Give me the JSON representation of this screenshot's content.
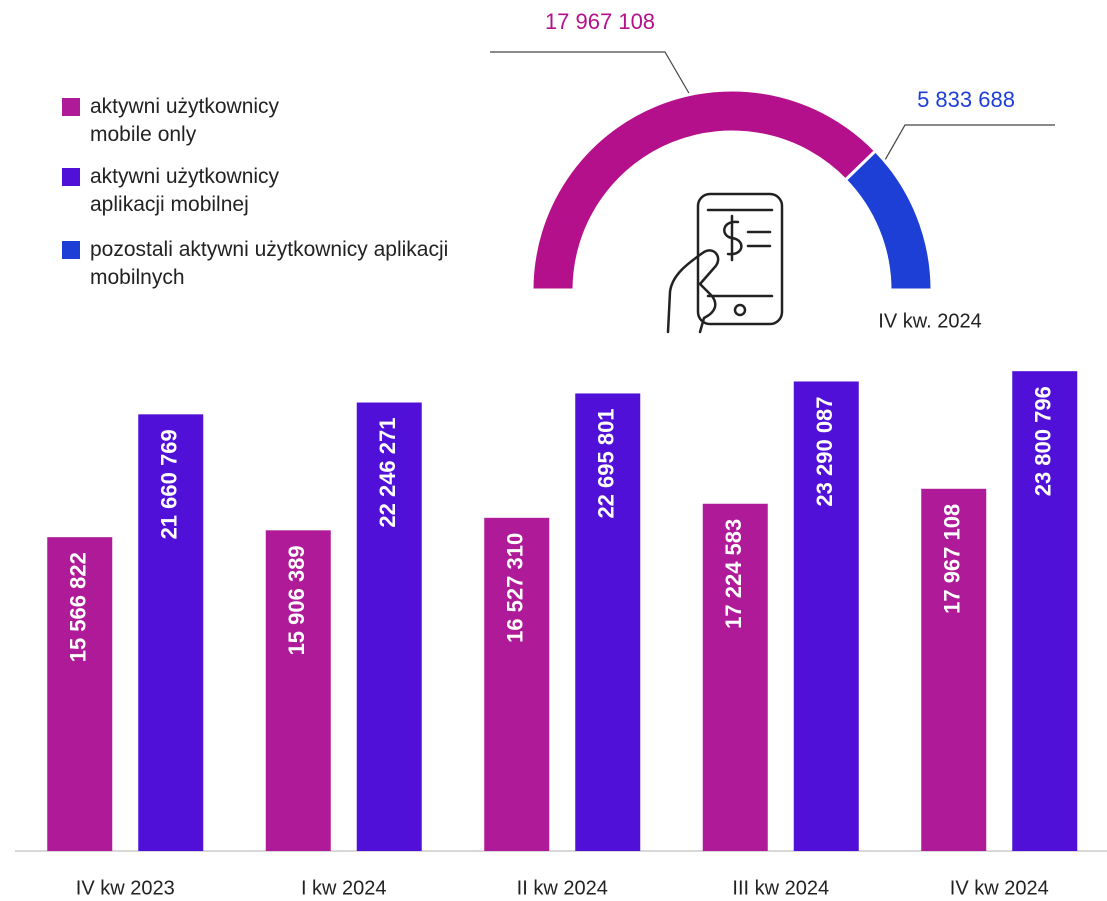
{
  "chart_data": [
    {
      "type": "bar",
      "categories": [
        "IV kw 2023",
        "I kw 2024",
        "II kw 2024",
        "III kw 2024",
        "IV kw 2024"
      ],
      "series": [
        {
          "name": "aktywni użytkownicy mobile only",
          "color": "#ae1a98",
          "values": [
            15566822,
            15906389,
            16527310,
            17224583,
            17967108
          ],
          "value_labels": [
            "15 566 822",
            "15 906 389",
            "16 527 310",
            "17 224 583",
            "17 967 108"
          ]
        },
        {
          "name": "aktywni użytkownicy aplikacji mobilnej",
          "color": "#5110d8",
          "values": [
            21660769,
            22246271,
            22695801,
            23290087,
            23800796
          ],
          "value_labels": [
            "21 660 769",
            "22 246 271",
            "22 695 801",
            "23 290 087",
            "23 800 796"
          ]
        }
      ],
      "ylim": [
        0,
        25000000
      ]
    },
    {
      "type": "pie",
      "title": "IV kw. 2024",
      "categories": [
        null,
        "pozostali aktywni użytkownicy aplikacji mobilnych"
      ],
      "values": [
        17967108,
        5833688
      ],
      "value_labels": [
        "17 967 108",
        "5 833 688"
      ],
      "colors": [
        "#b5108c",
        "#1d3fd6"
      ]
    }
  ]
}
